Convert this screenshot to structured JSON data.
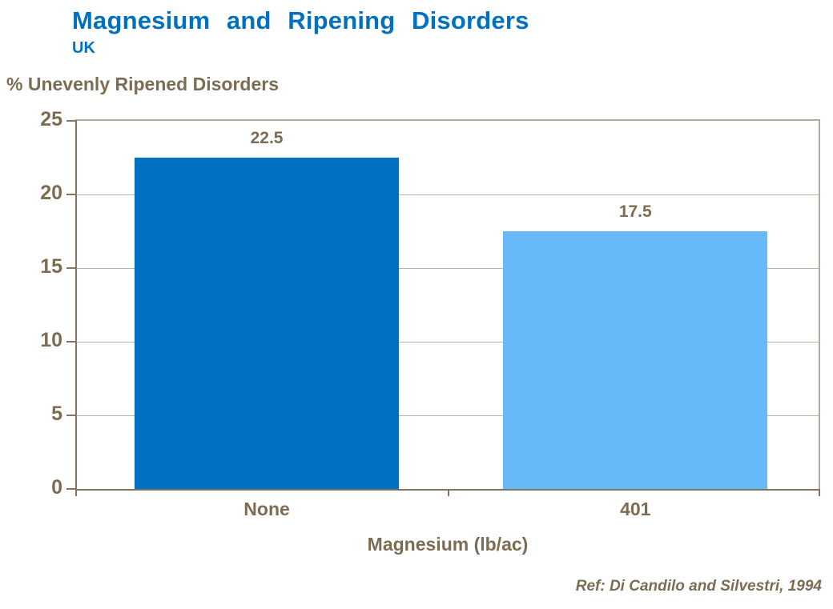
{
  "header": {
    "title": "Magnesium and Ripening Disorders",
    "subtitle": "UK"
  },
  "footer": {
    "reference": "Ref: Di Candilo and Silvestri, 1994"
  },
  "chart_data": {
    "type": "bar",
    "title": "Magnesium and Ripening Disorders",
    "subtitle": "UK",
    "categories": [
      "None",
      "401"
    ],
    "values": [
      22.5,
      17.5
    ],
    "data_labels": [
      "22.5",
      "17.5"
    ],
    "bar_colors": [
      "#0070C0",
      "#67B9F7"
    ],
    "ylabel": "% Unevenly Ripened Disorders",
    "xlabel": "Magnesium (lb/ac)",
    "ylim": [
      0,
      25
    ],
    "yticks": [
      0,
      5,
      10,
      15,
      20,
      25
    ],
    "grid": "horizontal",
    "legend": "none",
    "colors": {
      "title_text": "#0070C0",
      "axis_text": "#7C6C52",
      "axis_line": "#84755E",
      "gridline": "#BCB3A8",
      "plot_frame": "#B3AAA0"
    }
  }
}
